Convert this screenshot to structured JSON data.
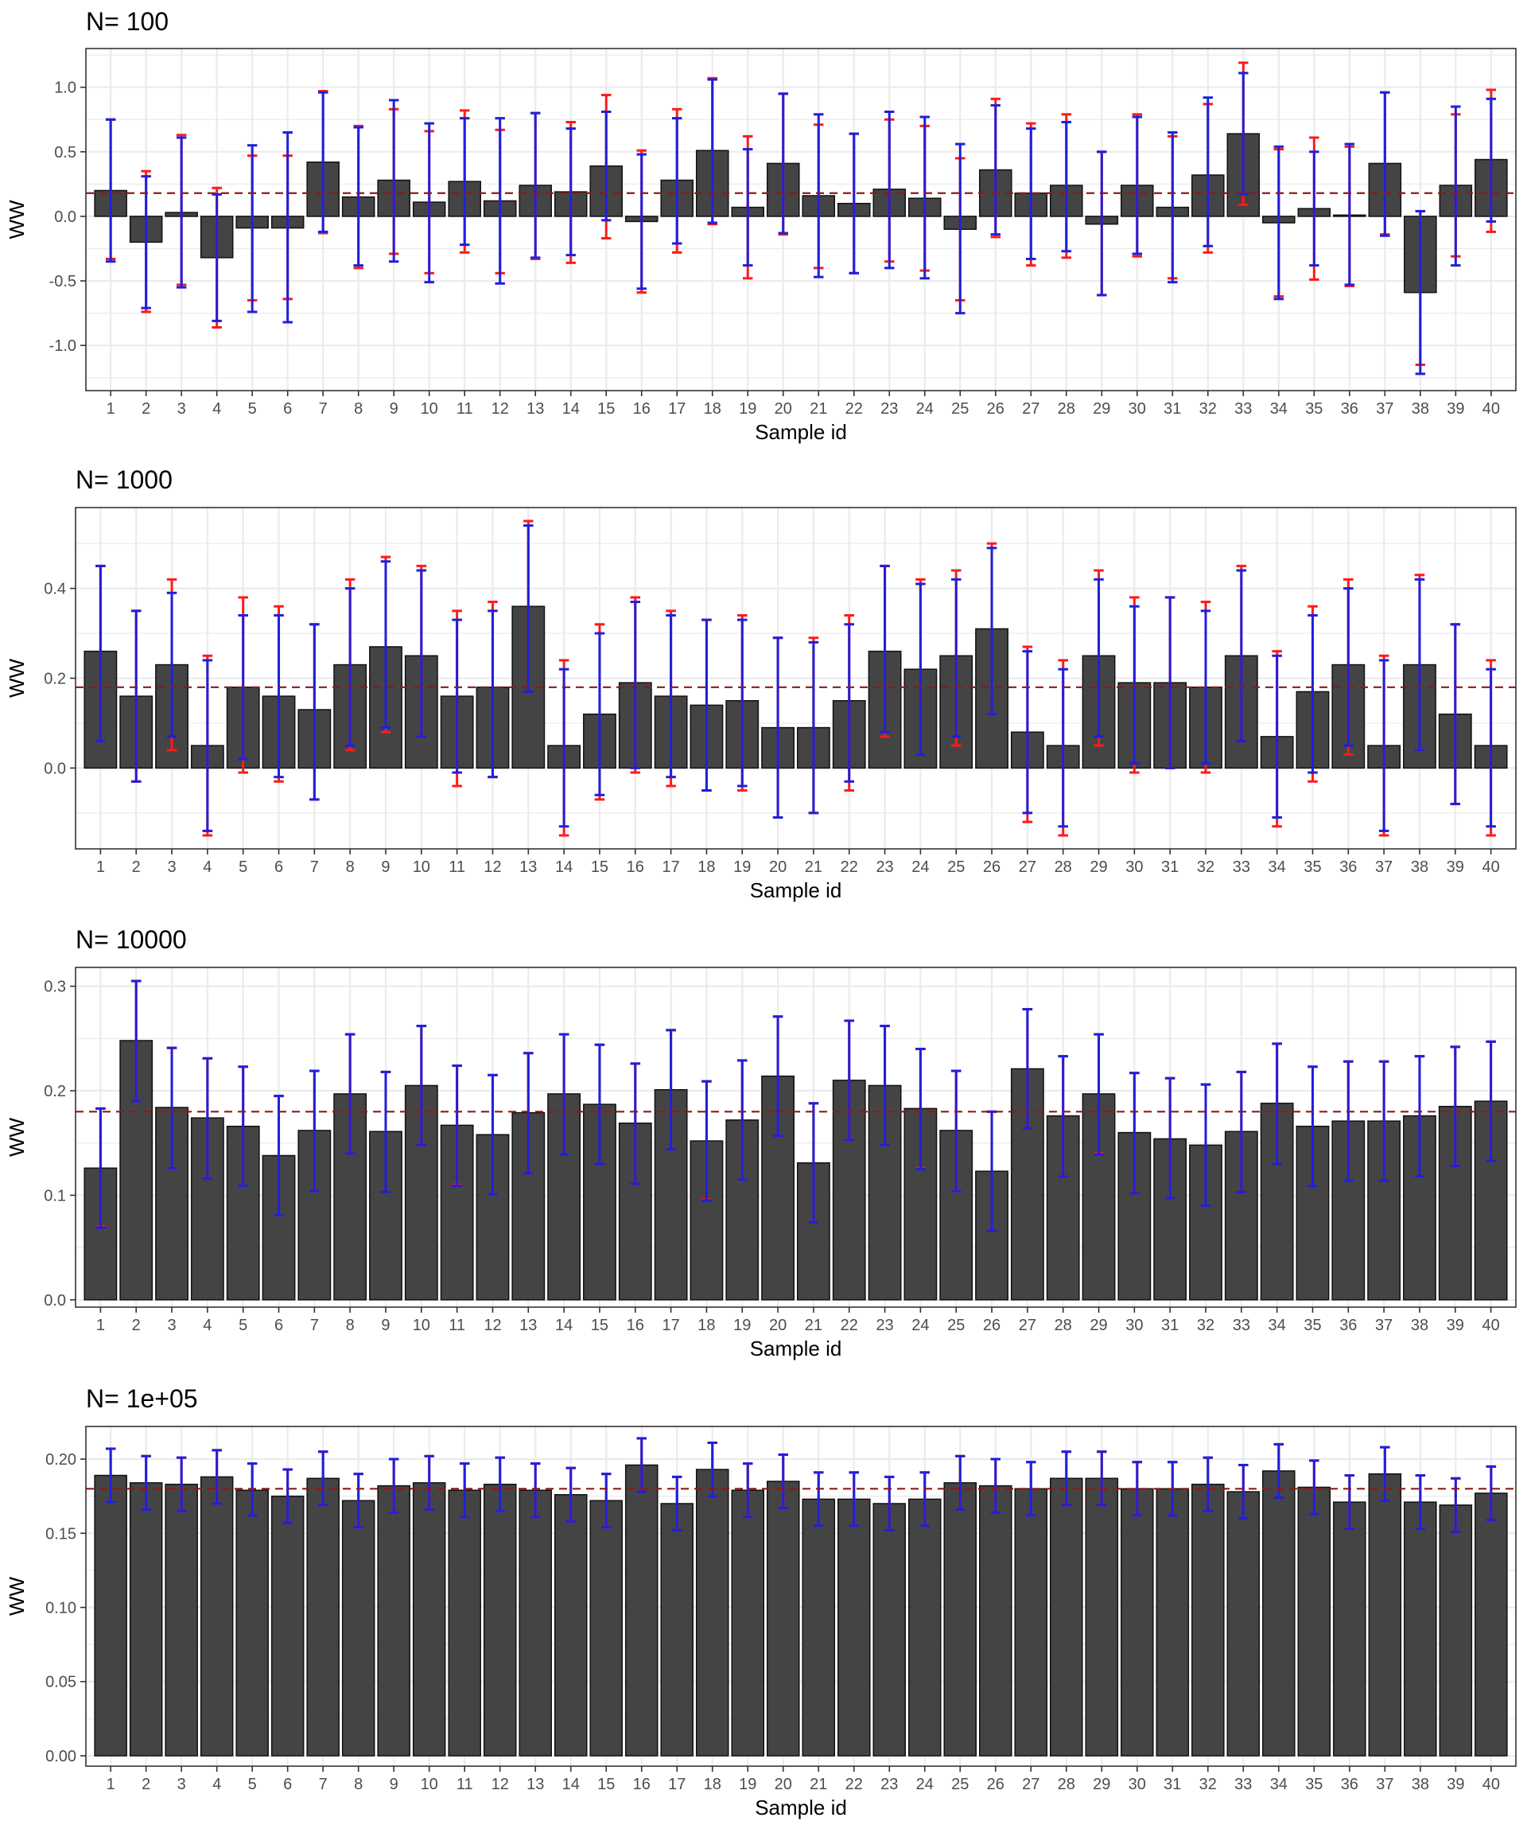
{
  "chart_data": [
    {
      "type": "bar",
      "title": "N= 100",
      "xlabel": "Sample id",
      "ylabel": "WW",
      "categories": [
        "1",
        "2",
        "3",
        "4",
        "5",
        "6",
        "7",
        "8",
        "9",
        "10",
        "11",
        "12",
        "13",
        "14",
        "15",
        "16",
        "17",
        "18",
        "19",
        "20",
        "21",
        "22",
        "23",
        "24",
        "25",
        "26",
        "27",
        "28",
        "29",
        "30",
        "31",
        "32",
        "33",
        "34",
        "35",
        "36",
        "37",
        "38",
        "39",
        "40"
      ],
      "values": [
        0.2,
        -0.2,
        0.03,
        -0.32,
        -0.09,
        -0.09,
        0.42,
        0.15,
        0.28,
        0.11,
        0.27,
        0.12,
        0.24,
        0.19,
        0.39,
        -0.04,
        0.28,
        0.51,
        0.07,
        0.41,
        0.16,
        0.1,
        0.21,
        0.14,
        -0.1,
        0.36,
        0.18,
        0.24,
        -0.06,
        0.24,
        0.07,
        0.32,
        0.64,
        -0.05,
        0.06,
        0.01,
        0.41,
        -0.59,
        0.24,
        0.44
      ],
      "error_blue": {
        "lower": [
          -0.35,
          -0.71,
          -0.55,
          -0.81,
          -0.74,
          -0.82,
          -0.12,
          -0.38,
          -0.35,
          -0.51,
          -0.22,
          -0.52,
          -0.32,
          -0.3,
          -0.03,
          -0.56,
          -0.21,
          -0.05,
          -0.38,
          -0.13,
          -0.47,
          -0.44,
          -0.4,
          -0.48,
          -0.75,
          -0.14,
          -0.33,
          -0.27,
          -0.61,
          -0.29,
          -0.51,
          -0.23,
          0.17,
          -0.64,
          -0.38,
          -0.53,
          -0.15,
          -1.22,
          -0.38,
          -0.04
        ],
        "upper": [
          0.75,
          0.31,
          0.61,
          0.17,
          0.55,
          0.65,
          0.96,
          0.69,
          0.9,
          0.72,
          0.76,
          0.76,
          0.8,
          0.68,
          0.81,
          0.48,
          0.76,
          1.06,
          0.52,
          0.95,
          0.79,
          0.64,
          0.81,
          0.77,
          0.56,
          0.86,
          0.68,
          0.73,
          0.5,
          0.77,
          0.65,
          0.92,
          1.11,
          0.54,
          0.5,
          0.56,
          0.96,
          0.04,
          0.85,
          0.91
        ]
      },
      "error_red": {
        "lower": [
          -0.33,
          -0.74,
          -0.53,
          -0.86,
          -0.65,
          -0.64,
          -0.13,
          -0.4,
          -0.29,
          -0.44,
          -0.28,
          -0.44,
          -0.33,
          -0.36,
          -0.17,
          -0.59,
          -0.28,
          -0.06,
          -0.48,
          -0.14,
          -0.4,
          -0.44,
          -0.35,
          -0.42,
          -0.65,
          -0.16,
          -0.38,
          -0.32,
          -0.61,
          -0.31,
          -0.48,
          -0.28,
          0.09,
          -0.62,
          -0.49,
          -0.54,
          -0.14,
          -1.15,
          -0.31,
          -0.12
        ],
        "upper": [
          0.75,
          0.35,
          0.63,
          0.22,
          0.47,
          0.47,
          0.97,
          0.7,
          0.83,
          0.66,
          0.82,
          0.67,
          0.8,
          0.73,
          0.94,
          0.51,
          0.83,
          1.07,
          0.62,
          0.95,
          0.71,
          0.64,
          0.75,
          0.7,
          0.45,
          0.91,
          0.72,
          0.79,
          0.5,
          0.79,
          0.62,
          0.87,
          1.19,
          0.52,
          0.61,
          0.54,
          0.96,
          0.04,
          0.79,
          0.98
        ]
      },
      "reference_line": 0.18,
      "ylim": [
        -1.35,
        1.3
      ],
      "yticks": [
        -1.0,
        -0.5,
        0.0,
        0.5,
        1.0
      ],
      "ytick_labels": [
        "-1.0",
        "-0.5",
        "0.0",
        "0.5",
        "1.0"
      ],
      "grid": true,
      "legend": "none"
    },
    {
      "type": "bar",
      "title": "N= 1000",
      "xlabel": "Sample id",
      "ylabel": "WW",
      "categories": [
        "1",
        "2",
        "3",
        "4",
        "5",
        "6",
        "7",
        "8",
        "9",
        "10",
        "11",
        "12",
        "13",
        "14",
        "15",
        "16",
        "17",
        "18",
        "19",
        "20",
        "21",
        "22",
        "23",
        "24",
        "25",
        "26",
        "27",
        "28",
        "29",
        "30",
        "31",
        "32",
        "33",
        "34",
        "35",
        "36",
        "37",
        "38",
        "39",
        "40"
      ],
      "values": [
        0.26,
        0.16,
        0.23,
        0.05,
        0.18,
        0.16,
        0.13,
        0.23,
        0.27,
        0.25,
        0.16,
        0.18,
        0.36,
        0.05,
        0.12,
        0.19,
        0.16,
        0.14,
        0.15,
        0.09,
        0.09,
        0.15,
        0.26,
        0.22,
        0.25,
        0.31,
        0.08,
        0.05,
        0.25,
        0.19,
        0.19,
        0.18,
        0.25,
        0.07,
        0.17,
        0.23,
        0.05,
        0.23,
        0.12,
        0.05
      ],
      "error_blue": {
        "lower": [
          0.06,
          -0.03,
          0.07,
          -0.14,
          0.02,
          -0.02,
          -0.07,
          0.05,
          0.09,
          0.07,
          -0.01,
          -0.02,
          0.17,
          -0.13,
          -0.06,
          0.0,
          -0.02,
          -0.05,
          -0.04,
          -0.11,
          -0.1,
          -0.03,
          0.08,
          0.03,
          0.07,
          0.12,
          -0.1,
          -0.13,
          0.07,
          0.01,
          0.0,
          0.01,
          0.06,
          -0.11,
          -0.01,
          0.05,
          -0.14,
          0.04,
          -0.08,
          -0.13
        ],
        "upper": [
          0.45,
          0.35,
          0.39,
          0.24,
          0.34,
          0.34,
          0.32,
          0.4,
          0.46,
          0.44,
          0.33,
          0.35,
          0.54,
          0.22,
          0.3,
          0.37,
          0.34,
          0.33,
          0.33,
          0.29,
          0.28,
          0.32,
          0.45,
          0.41,
          0.42,
          0.49,
          0.26,
          0.22,
          0.42,
          0.36,
          0.38,
          0.35,
          0.44,
          0.25,
          0.34,
          0.4,
          0.24,
          0.42,
          0.32,
          0.22
        ]
      },
      "error_red": {
        "lower": [
          0.06,
          -0.03,
          0.04,
          -0.15,
          -0.01,
          -0.03,
          -0.07,
          0.04,
          0.08,
          0.07,
          -0.04,
          -0.02,
          0.17,
          -0.15,
          -0.07,
          -0.01,
          -0.04,
          -0.05,
          -0.05,
          -0.11,
          -0.1,
          -0.05,
          0.07,
          0.03,
          0.05,
          0.12,
          -0.12,
          -0.15,
          0.05,
          -0.01,
          0.0,
          -0.01,
          0.06,
          -0.13,
          -0.03,
          0.03,
          -0.15,
          0.04,
          -0.08,
          -0.15
        ],
        "upper": [
          0.45,
          0.35,
          0.42,
          0.25,
          0.38,
          0.36,
          0.32,
          0.42,
          0.47,
          0.45,
          0.35,
          0.37,
          0.55,
          0.24,
          0.32,
          0.38,
          0.35,
          0.33,
          0.34,
          0.29,
          0.29,
          0.34,
          0.45,
          0.42,
          0.44,
          0.5,
          0.27,
          0.24,
          0.44,
          0.38,
          0.38,
          0.37,
          0.45,
          0.26,
          0.36,
          0.42,
          0.25,
          0.43,
          0.32,
          0.24
        ]
      },
      "reference_line": 0.18,
      "ylim": [
        -0.18,
        0.58
      ],
      "yticks": [
        0.0,
        0.2,
        0.4
      ],
      "ytick_labels": [
        "0.0",
        "0.2",
        "0.4"
      ],
      "grid": true,
      "legend": "none"
    },
    {
      "type": "bar",
      "title": "N= 10000",
      "xlabel": "Sample id",
      "ylabel": "WW",
      "categories": [
        "1",
        "2",
        "3",
        "4",
        "5",
        "6",
        "7",
        "8",
        "9",
        "10",
        "11",
        "12",
        "13",
        "14",
        "15",
        "16",
        "17",
        "18",
        "19",
        "20",
        "21",
        "22",
        "23",
        "24",
        "25",
        "26",
        "27",
        "28",
        "29",
        "30",
        "31",
        "32",
        "33",
        "34",
        "35",
        "36",
        "37",
        "38",
        "39",
        "40"
      ],
      "values": [
        0.126,
        0.248,
        0.184,
        0.174,
        0.166,
        0.138,
        0.162,
        0.197,
        0.161,
        0.205,
        0.167,
        0.158,
        0.179,
        0.197,
        0.187,
        0.169,
        0.201,
        0.152,
        0.172,
        0.214,
        0.131,
        0.21,
        0.205,
        0.183,
        0.162,
        0.123,
        0.221,
        0.176,
        0.197,
        0.16,
        0.154,
        0.148,
        0.161,
        0.188,
        0.166,
        0.171,
        0.171,
        0.176,
        0.185,
        0.19
      ],
      "error_blue": {
        "lower": [
          0.069,
          0.19,
          0.126,
          0.116,
          0.109,
          0.081,
          0.104,
          0.14,
          0.103,
          0.148,
          0.109,
          0.101,
          0.121,
          0.139,
          0.13,
          0.111,
          0.144,
          0.095,
          0.115,
          0.157,
          0.074,
          0.153,
          0.148,
          0.125,
          0.104,
          0.066,
          0.164,
          0.118,
          0.139,
          0.102,
          0.097,
          0.09,
          0.103,
          0.13,
          0.109,
          0.114,
          0.114,
          0.118,
          0.128,
          0.133
        ],
        "upper": [
          0.183,
          0.305,
          0.241,
          0.231,
          0.223,
          0.195,
          0.219,
          0.254,
          0.218,
          0.262,
          0.224,
          0.215,
          0.236,
          0.254,
          0.244,
          0.226,
          0.258,
          0.209,
          0.229,
          0.271,
          0.188,
          0.267,
          0.262,
          0.24,
          0.219,
          0.18,
          0.278,
          0.233,
          0.254,
          0.217,
          0.212,
          0.206,
          0.218,
          0.245,
          0.223,
          0.228,
          0.228,
          0.233,
          0.242,
          0.247
        ]
      },
      "error_red": {
        "lower": [
          0.07,
          0.19,
          0.126,
          0.116,
          0.109,
          0.081,
          0.104,
          0.14,
          0.103,
          0.148,
          0.11,
          0.101,
          0.121,
          0.139,
          0.13,
          0.111,
          0.144,
          0.096,
          0.115,
          0.157,
          0.074,
          0.153,
          0.148,
          0.126,
          0.104,
          0.066,
          0.164,
          0.118,
          0.14,
          0.102,
          0.097,
          0.09,
          0.103,
          0.13,
          0.109,
          0.114,
          0.114,
          0.118,
          0.128,
          0.133
        ],
        "upper": [
          0.183,
          0.305,
          0.241,
          0.231,
          0.223,
          0.195,
          0.219,
          0.254,
          0.218,
          0.262,
          0.224,
          0.215,
          0.236,
          0.254,
          0.244,
          0.226,
          0.258,
          0.209,
          0.229,
          0.271,
          0.188,
          0.267,
          0.262,
          0.24,
          0.219,
          0.18,
          0.278,
          0.233,
          0.254,
          0.217,
          0.212,
          0.206,
          0.218,
          0.245,
          0.223,
          0.228,
          0.228,
          0.233,
          0.242,
          0.247
        ]
      },
      "reference_line": 0.18,
      "ylim": [
        -0.007,
        0.318
      ],
      "yticks": [
        0.0,
        0.1,
        0.2,
        0.3
      ],
      "ytick_labels": [
        "0.0",
        "0.1",
        "0.2",
        "0.3"
      ],
      "grid": true,
      "legend": "none"
    },
    {
      "type": "bar",
      "title": "N= 1e+05",
      "xlabel": "Sample id",
      "ylabel": "WW",
      "categories": [
        "1",
        "2",
        "3",
        "4",
        "5",
        "6",
        "7",
        "8",
        "9",
        "10",
        "11",
        "12",
        "13",
        "14",
        "15",
        "16",
        "17",
        "18",
        "19",
        "20",
        "21",
        "22",
        "23",
        "24",
        "25",
        "26",
        "27",
        "28",
        "29",
        "30",
        "31",
        "32",
        "33",
        "34",
        "35",
        "36",
        "37",
        "38",
        "39",
        "40"
      ],
      "values": [
        0.189,
        0.184,
        0.183,
        0.188,
        0.179,
        0.175,
        0.187,
        0.172,
        0.182,
        0.184,
        0.179,
        0.183,
        0.179,
        0.176,
        0.172,
        0.196,
        0.17,
        0.193,
        0.179,
        0.185,
        0.173,
        0.173,
        0.17,
        0.173,
        0.184,
        0.182,
        0.18,
        0.187,
        0.187,
        0.18,
        0.18,
        0.183,
        0.178,
        0.192,
        0.181,
        0.171,
        0.19,
        0.171,
        0.169,
        0.177
      ],
      "error_blue": {
        "lower": [
          0.171,
          0.166,
          0.165,
          0.17,
          0.162,
          0.157,
          0.169,
          0.154,
          0.164,
          0.166,
          0.161,
          0.165,
          0.161,
          0.158,
          0.154,
          0.178,
          0.152,
          0.175,
          0.161,
          0.167,
          0.155,
          0.155,
          0.152,
          0.155,
          0.166,
          0.164,
          0.162,
          0.169,
          0.169,
          0.162,
          0.162,
          0.165,
          0.16,
          0.174,
          0.163,
          0.153,
          0.172,
          0.153,
          0.151,
          0.159
        ],
        "upper": [
          0.207,
          0.202,
          0.201,
          0.206,
          0.197,
          0.193,
          0.205,
          0.19,
          0.2,
          0.202,
          0.197,
          0.201,
          0.197,
          0.194,
          0.19,
          0.214,
          0.188,
          0.211,
          0.197,
          0.203,
          0.191,
          0.191,
          0.188,
          0.191,
          0.202,
          0.2,
          0.198,
          0.205,
          0.205,
          0.198,
          0.198,
          0.201,
          0.196,
          0.21,
          0.199,
          0.189,
          0.208,
          0.189,
          0.187,
          0.195
        ]
      },
      "error_red": {
        "lower": [
          0.171,
          0.166,
          0.165,
          0.17,
          0.162,
          0.157,
          0.169,
          0.154,
          0.164,
          0.166,
          0.161,
          0.165,
          0.161,
          0.158,
          0.154,
          0.178,
          0.152,
          0.175,
          0.161,
          0.167,
          0.155,
          0.155,
          0.152,
          0.155,
          0.166,
          0.164,
          0.162,
          0.169,
          0.169,
          0.162,
          0.162,
          0.165,
          0.16,
          0.174,
          0.163,
          0.153,
          0.172,
          0.153,
          0.151,
          0.159
        ],
        "upper": [
          0.207,
          0.202,
          0.201,
          0.206,
          0.197,
          0.193,
          0.205,
          0.19,
          0.2,
          0.202,
          0.197,
          0.201,
          0.197,
          0.194,
          0.19,
          0.214,
          0.188,
          0.211,
          0.197,
          0.203,
          0.191,
          0.191,
          0.188,
          0.191,
          0.202,
          0.2,
          0.198,
          0.205,
          0.205,
          0.198,
          0.198,
          0.201,
          0.196,
          0.21,
          0.199,
          0.189,
          0.208,
          0.189,
          0.187,
          0.195
        ]
      },
      "reference_line": 0.18,
      "ylim": [
        -0.007,
        0.222
      ],
      "yticks": [
        0.0,
        0.05,
        0.1,
        0.15,
        0.2
      ],
      "ytick_labels": [
        "0.00",
        "0.05",
        "0.10",
        "0.15",
        "0.20"
      ],
      "grid": true,
      "legend": "none"
    }
  ],
  "colors": {
    "bar_fill": "#444444",
    "bar_outline": "#ffffff",
    "panel_border": "#333333",
    "grid": "#ebebeb",
    "error_blue": "#1f1fdd",
    "error_red": "#ff1a1a",
    "reference_line": "#8b1a1a",
    "tick_text": "#4d4d4d"
  }
}
